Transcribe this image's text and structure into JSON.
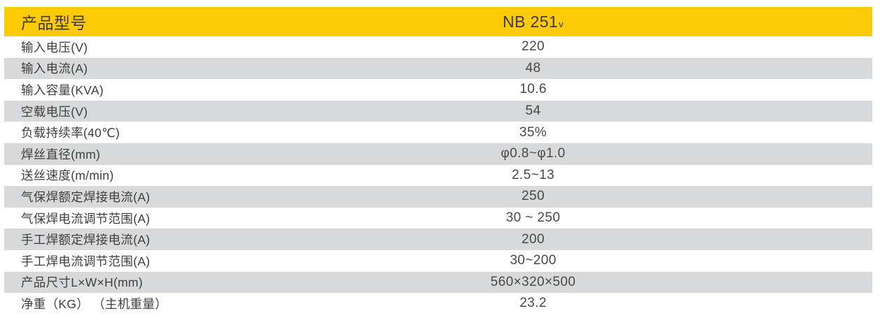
{
  "table": {
    "header": {
      "label": "产品型号",
      "model": "NB 251",
      "model_suffix": "v"
    },
    "rows": [
      {
        "label": "输入电压(V)",
        "value": "220"
      },
      {
        "label": "输入电流(A)",
        "value": "48"
      },
      {
        "label": "输入容量(KVA)",
        "value": "10.6"
      },
      {
        "label": "空载电压(V)",
        "value": "54"
      },
      {
        "label": "负载持续率(40℃)",
        "value": "35%"
      },
      {
        "label": "焊丝直径(mm)",
        "value": "φ0.8~φ1.0"
      },
      {
        "label": "送丝速度(m/min)",
        "value": "2.5~13"
      },
      {
        "label": "气保焊额定焊接电流(A)",
        "value": "250"
      },
      {
        "label": "气保焊电流调节范围(A)",
        "value": "30 ~ 250"
      },
      {
        "label": "手工焊额定焊接电流(A)",
        "value": "200"
      },
      {
        "label": "手工焊电流调节范围(A)",
        "value": "30~200"
      },
      {
        "label": "产品尺寸L×W×H(mm)",
        "value": "560×320×500"
      },
      {
        "label": "净重（KG） （主机重量）",
        "value": "23.2"
      }
    ],
    "colors": {
      "header_bg": "#fdca08",
      "alt_row_bg": "#d8d9da",
      "row_bg": "#ffffff",
      "header_text": "#3b3a36",
      "label_text": "#3f3f3f",
      "value_text": "#494949"
    }
  }
}
